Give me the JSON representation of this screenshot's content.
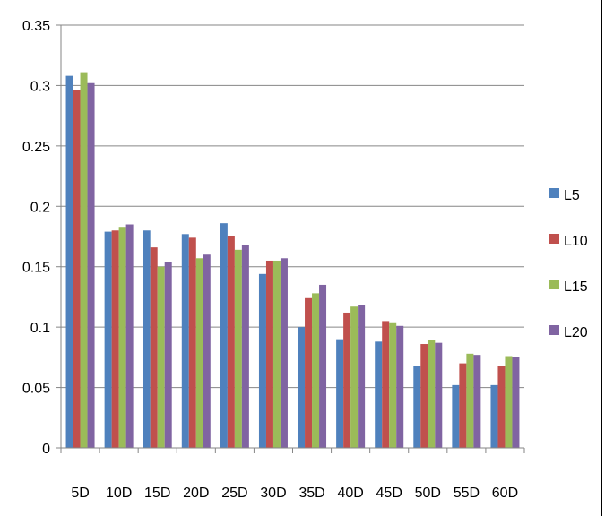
{
  "chart_data": {
    "type": "bar",
    "categories": [
      "5D",
      "10D",
      "15D",
      "20D",
      "25D",
      "30D",
      "35D",
      "40D",
      "45D",
      "50D",
      "55D",
      "60D"
    ],
    "series": [
      {
        "name": "L5",
        "color": "#4F81BD",
        "values": [
          0.308,
          0.179,
          0.18,
          0.177,
          0.186,
          0.144,
          0.1,
          0.09,
          0.088,
          0.068,
          0.052,
          0.052
        ]
      },
      {
        "name": "L10",
        "color": "#C0504D",
        "values": [
          0.296,
          0.18,
          0.166,
          0.174,
          0.175,
          0.155,
          0.124,
          0.112,
          0.105,
          0.086,
          0.07,
          0.068
        ]
      },
      {
        "name": "L15",
        "color": "#9BBB59",
        "values": [
          0.311,
          0.183,
          0.15,
          0.157,
          0.164,
          0.155,
          0.128,
          0.117,
          0.104,
          0.089,
          0.078,
          0.076
        ]
      },
      {
        "name": "L20",
        "color": "#8064A2",
        "values": [
          0.302,
          0.185,
          0.154,
          0.16,
          0.168,
          0.157,
          0.135,
          0.118,
          0.101,
          0.087,
          0.077,
          0.075
        ]
      }
    ],
    "y_ticks": [
      "0",
      "0.05",
      "0.1",
      "0.15",
      "0.2",
      "0.25",
      "0.3",
      "0.35"
    ],
    "ylim": [
      0,
      0.35
    ],
    "grid": true,
    "legend_position": "right",
    "title": "",
    "xlabel": "",
    "ylabel": ""
  }
}
